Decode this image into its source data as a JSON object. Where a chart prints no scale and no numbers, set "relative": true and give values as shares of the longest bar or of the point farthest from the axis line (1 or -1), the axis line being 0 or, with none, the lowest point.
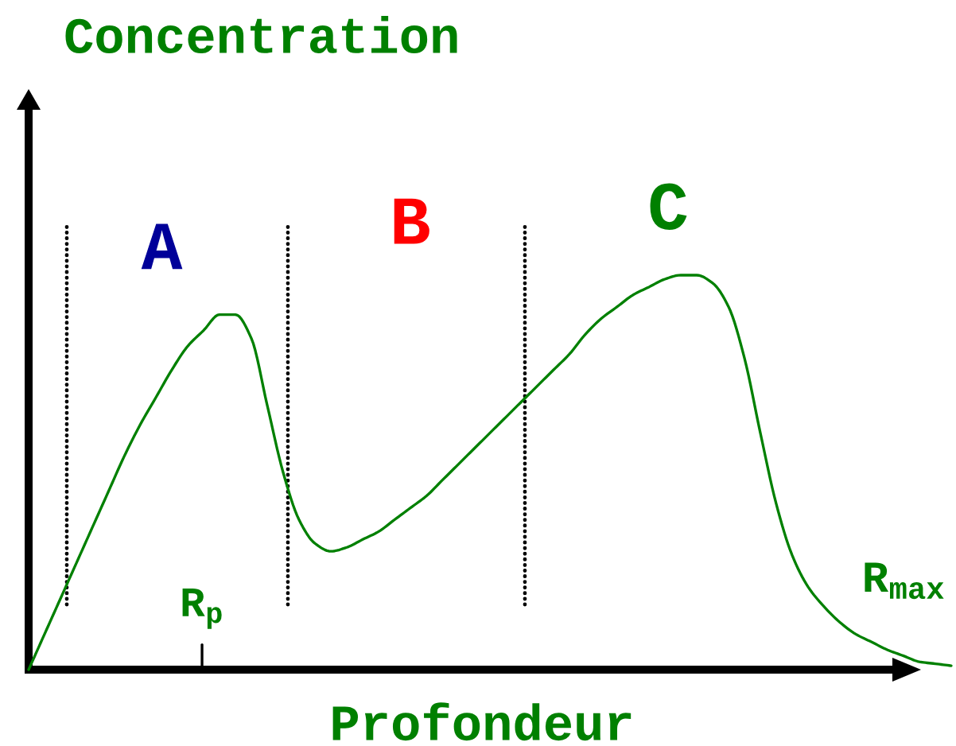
{
  "chart_data": {
    "type": "line",
    "relative": true,
    "ylabel": "Concentration",
    "xlabel": "Profondeur",
    "categories": [
      null,
      null,
      null,
      null,
      null,
      null,
      null,
      null,
      null,
      null,
      null,
      null,
      null,
      null,
      null,
      null,
      null,
      null,
      null,
      null,
      null,
      null,
      null,
      null,
      null,
      null,
      null,
      null,
      null,
      null,
      null,
      null,
      null,
      null,
      null,
      null,
      null,
      null,
      null,
      null,
      null,
      null,
      null,
      null,
      null,
      null,
      null,
      null,
      null,
      null,
      null,
      null,
      null,
      null,
      null,
      null,
      null,
      null,
      null
    ],
    "series": [
      {
        "color": "#008000",
        "values": [
          0,
          0.09,
          0.18,
          0.27,
          0.36,
          0.45,
          0.54,
          0.62,
          0.69,
          0.76,
          0.82,
          0.86,
          0.9,
          0.9,
          0.84,
          0.67,
          0.5,
          0.38,
          0.32,
          0.3,
          0.31,
          0.33,
          0.35,
          0.38,
          0.41,
          0.44,
          0.48,
          0.52,
          0.56,
          0.6,
          0.64,
          0.68,
          0.72,
          0.76,
          0.8,
          0.85,
          0.89,
          0.92,
          0.95,
          0.97,
          0.99,
          1.0,
          1.0,
          0.98,
          0.92,
          0.79,
          0.6,
          0.42,
          0.29,
          0.21,
          0.16,
          0.12,
          0.09,
          0.07,
          0.05,
          0.035,
          0.02,
          0.015,
          0.01
        ]
      }
    ],
    "annotations": [
      "A",
      "B",
      "C",
      "R$_{p}$",
      "R$_{max}$"
    ],
    "grid": false,
    "marker": "none",
    "line_style": "solid"
  }
}
